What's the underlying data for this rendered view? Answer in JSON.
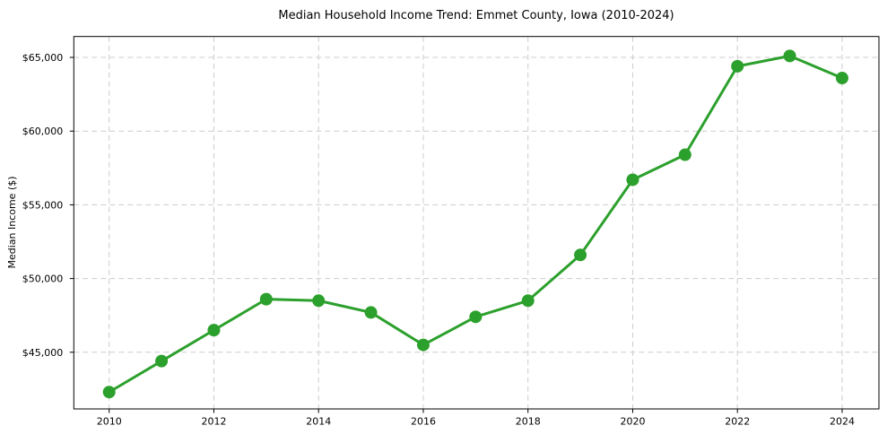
{
  "chart_data": {
    "type": "line",
    "title": "Median Household Income Trend: Emmet County, Iowa (2010-2024)",
    "xlabel": "",
    "ylabel": "Median Income ($)",
    "x": [
      2010,
      2011,
      2012,
      2013,
      2014,
      2015,
      2016,
      2017,
      2018,
      2019,
      2020,
      2021,
      2022,
      2023,
      2024
    ],
    "series": [
      {
        "name": "Median Household Income",
        "values": [
          42300,
          44400,
          46500,
          48600,
          48500,
          47700,
          45500,
          47400,
          48500,
          51600,
          56700,
          58400,
          64400,
          65100,
          63600
        ],
        "color": "#2ca02c"
      }
    ],
    "x_ticks": [
      {
        "value": 2010,
        "label": "2010"
      },
      {
        "value": 2012,
        "label": "2012"
      },
      {
        "value": 2014,
        "label": "2014"
      },
      {
        "value": 2016,
        "label": "2016"
      },
      {
        "value": 2018,
        "label": "2018"
      },
      {
        "value": 2020,
        "label": "2020"
      },
      {
        "value": 2022,
        "label": "2022"
      },
      {
        "value": 2024,
        "label": "2024"
      }
    ],
    "y_ticks": [
      {
        "value": 45000,
        "label": "$45,000"
      },
      {
        "value": 50000,
        "label": "$50,000"
      },
      {
        "value": 55000,
        "label": "$55,000"
      },
      {
        "value": 60000,
        "label": "$60,000"
      },
      {
        "value": 65000,
        "label": "$65,000"
      }
    ],
    "xlim": [
      2009.325,
      2024.703
    ],
    "ylim": [
      41156,
      66418
    ],
    "grid": true,
    "grid_style": "dashed",
    "legend": "none",
    "colors": {
      "line": "#2ca02c",
      "marker": "#2ca02c",
      "grid": "#cccccc",
      "spine": "#000000",
      "background": "#ffffff"
    },
    "marker": "circle",
    "marker_radius": 7,
    "line_width": 3
  }
}
